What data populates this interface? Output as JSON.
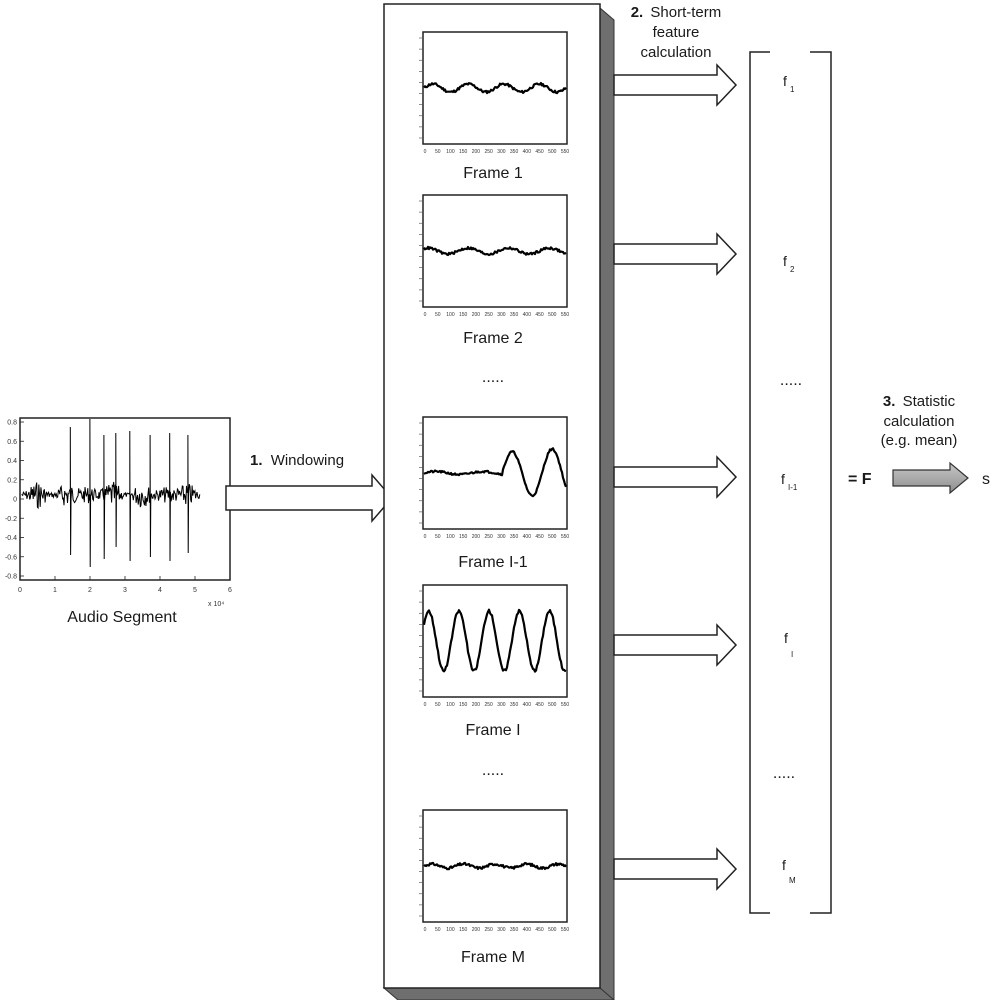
{
  "audio_segment": {
    "caption": "Audio Segment",
    "y_ticks": [
      "0.8",
      "0.6",
      "0.4",
      "0.2",
      "0",
      "-0.2",
      "-0.4",
      "-0.6",
      "-0.8"
    ],
    "x_ticks": [
      "0",
      "1",
      "2",
      "3",
      "4",
      "5",
      "6"
    ],
    "x_scale": "x 10⁴"
  },
  "steps": {
    "windowing": {
      "number": "1.",
      "label": "Windowing"
    },
    "feature": {
      "number": "2.",
      "label_line1": "Short-term",
      "label_line2": "feature",
      "label_line3": "calculation"
    },
    "statistic": {
      "number": "3.",
      "label_line1": "Statistic",
      "label_line2": "calculation",
      "label_line3": "(e.g. mean)"
    }
  },
  "frames": [
    {
      "caption": "Frame 1"
    },
    {
      "caption": "Frame 2"
    },
    {
      "caption": "Frame I-1"
    },
    {
      "caption": "Frame I"
    },
    {
      "caption": "Frame M"
    }
  ],
  "frame_ellipsis": ".....",
  "frame_x_ticks": [
    "0",
    "50",
    "100",
    "150",
    "200",
    "250",
    "300",
    "350",
    "400",
    "450",
    "500",
    "550"
  ],
  "features": [
    {
      "symbol": "f",
      "sub": "1"
    },
    {
      "symbol": "f",
      "sub": "2"
    },
    {
      "symbol": "f",
      "sub": "I-1"
    },
    {
      "symbol": "f",
      "sub": "I"
    },
    {
      "symbol": "f",
      "sub": "M"
    }
  ],
  "feature_ellipsis": ".....",
  "equals_label": "= F",
  "output_label": "s"
}
